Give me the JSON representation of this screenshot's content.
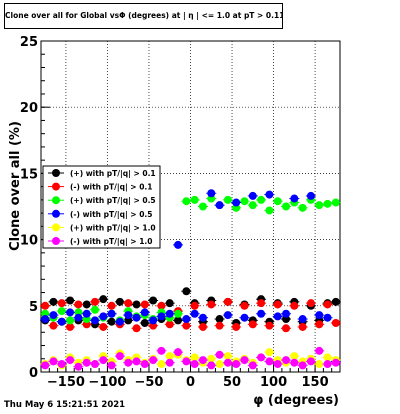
{
  "chart_data": {
    "type": "scatter",
    "title": "Clone  over all for Global vsΦ (degrees) at | η | <= 1.0 at pT > 0.11",
    "xlabel": "φ (degrees)",
    "ylabel": "Clone  over all (%)",
    "xlim": [
      -180,
      180
    ],
    "ylim": [
      0,
      25
    ],
    "xticks": [
      -150,
      -100,
      -50,
      0,
      50,
      100,
      150
    ],
    "xtick_labels": [
      "−150",
      "−100",
      "−50",
      "0",
      "50",
      "100",
      "150"
    ],
    "yticks": [
      0,
      5,
      10,
      15,
      20,
      25
    ],
    "grid": true,
    "legend_position": "left-middle",
    "series": [
      {
        "name": "(+) with pT/|q| > 0.1",
        "color": "#000000",
        "x": [
          -175,
          -165,
          -155,
          -145,
          -135,
          -125,
          -115,
          -105,
          -95,
          -85,
          -75,
          -65,
          -55,
          -45,
          -35,
          -25,
          -15,
          -5,
          5,
          15,
          25,
          35,
          45,
          55,
          65,
          75,
          85,
          95,
          105,
          115,
          125,
          135,
          145,
          155,
          165,
          175
        ],
        "y": [
          3.9,
          5.3,
          3.8,
          5.4,
          3.9,
          5.1,
          3.6,
          5.5,
          3.8,
          5.3,
          3.9,
          5.1,
          3.7,
          5.4,
          4.0,
          5.2,
          3.9,
          6.1,
          5.2,
          3.8,
          5.4,
          4.0,
          5.3,
          3.7,
          5.1,
          3.9,
          5.5,
          3.8,
          5.2,
          4.0,
          5.3,
          3.8,
          5.0,
          3.9,
          5.2,
          5.3
        ]
      },
      {
        "name": "(-) with pT/|q| > 0.1",
        "color": "#ff0000",
        "x": [
          -175,
          -165,
          -155,
          -145,
          -135,
          -125,
          -115,
          -105,
          -95,
          -85,
          -75,
          -65,
          -55,
          -45,
          -35,
          -25,
          -15,
          -5,
          5,
          15,
          25,
          35,
          45,
          55,
          65,
          75,
          85,
          95,
          105,
          115,
          125,
          135,
          145,
          155,
          165,
          175
        ],
        "y": [
          5.0,
          3.5,
          5.2,
          3.4,
          5.1,
          3.6,
          5.3,
          3.4,
          5.0,
          3.6,
          5.2,
          3.3,
          5.1,
          3.5,
          5.0,
          3.6,
          4.6,
          3.5,
          5.0,
          3.4,
          5.1,
          3.5,
          5.3,
          3.4,
          5.0,
          3.6,
          5.2,
          3.5,
          5.1,
          3.3,
          5.0,
          3.4,
          5.2,
          3.6,
          5.1,
          3.7
        ]
      },
      {
        "name": "(+) with pT/|q| > 0.5",
        "color": "#00ff00",
        "x": [
          -175,
          -165,
          -155,
          -145,
          -135,
          -125,
          -115,
          -105,
          -95,
          -85,
          -75,
          -65,
          -55,
          -45,
          -35,
          -25,
          -15,
          -5,
          5,
          15,
          25,
          35,
          45,
          55,
          65,
          75,
          85,
          95,
          105,
          115,
          125,
          135,
          145,
          155,
          165,
          175
        ],
        "y": [
          4.4,
          4.1,
          4.6,
          3.9,
          4.5,
          4.0,
          4.7,
          4.1,
          4.4,
          3.9,
          4.6,
          4.2,
          4.3,
          4.0,
          4.5,
          4.1,
          4.4,
          12.9,
          13.0,
          12.5,
          13.1,
          12.6,
          13.0,
          12.4,
          12.9,
          12.6,
          13.0,
          12.2,
          12.9,
          12.5,
          12.8,
          12.4,
          13.0,
          12.6,
          12.7,
          12.8
        ]
      },
      {
        "name": "(-) with pT/|q| > 0.5",
        "color": "#0000ff",
        "x": [
          -175,
          -165,
          -155,
          -145,
          -135,
          -125,
          -115,
          -105,
          -95,
          -85,
          -75,
          -65,
          -55,
          -45,
          -35,
          -25,
          -15,
          -5,
          5,
          15,
          25,
          35,
          45,
          55,
          65,
          75,
          85,
          95,
          105,
          115,
          125,
          135,
          145,
          155,
          165,
          175
        ],
        "y": [
          4.0,
          4.3,
          3.8,
          4.5,
          4.1,
          4.4,
          3.9,
          4.2,
          4.4,
          3.8,
          4.3,
          4.1,
          4.5,
          3.9,
          4.2,
          4.4,
          9.6,
          4.0,
          4.4,
          4.1,
          13.5,
          12.6,
          4.3,
          12.8,
          4.1,
          13.3,
          4.4,
          13.4,
          4.2,
          4.4,
          13.1,
          4.0,
          13.3,
          4.3,
          4.1,
          0.8
        ]
      },
      {
        "name": "(+) with pT/|q| > 1.0",
        "color": "#ffff00",
        "x": [
          -175,
          -165,
          -155,
          -145,
          -135,
          -125,
          -115,
          -105,
          -95,
          -85,
          -75,
          -65,
          -55,
          -45,
          -35,
          -25,
          -15,
          -5,
          5,
          15,
          25,
          35,
          45,
          55,
          65,
          75,
          85,
          95,
          105,
          115,
          125,
          135,
          145,
          155,
          165,
          175
        ],
        "y": [
          0.6,
          0.9,
          0.5,
          1.1,
          0.7,
          0.9,
          0.6,
          1.2,
          0.8,
          1.4,
          0.9,
          1.1,
          0.7,
          1.0,
          0.6,
          1.2,
          1.3,
          0.9,
          1.1,
          0.7,
          1.0,
          0.6,
          1.2,
          0.8,
          1.0,
          0.7,
          1.1,
          1.5,
          0.9,
          0.7,
          1.2,
          0.8,
          1.0,
          0.6,
          1.1,
          0.9
        ]
      },
      {
        "name": "(-) with pT/|q| > 1.0",
        "color": "#ff00ff",
        "x": [
          -175,
          -165,
          -155,
          -145,
          -135,
          -125,
          -115,
          -105,
          -95,
          -85,
          -75,
          -65,
          -55,
          -45,
          -35,
          -25,
          -15,
          -5,
          5,
          15,
          25,
          35,
          45,
          55,
          65,
          75,
          85,
          95,
          105,
          115,
          125,
          135,
          145,
          155,
          165,
          175
        ],
        "y": [
          0.5,
          0.8,
          0.6,
          0.9,
          0.4,
          0.7,
          0.6,
          0.9,
          0.5,
          1.2,
          0.7,
          0.8,
          0.6,
          0.9,
          1.6,
          0.7,
          1.5,
          0.8,
          0.6,
          0.9,
          0.5,
          1.3,
          0.7,
          0.6,
          0.9,
          0.5,
          1.1,
          0.8,
          0.6,
          0.9,
          0.7,
          0.5,
          0.8,
          1.6,
          0.6,
          0.7
        ]
      }
    ]
  },
  "timestamp": "Thu May  6 15:21:51 2021"
}
